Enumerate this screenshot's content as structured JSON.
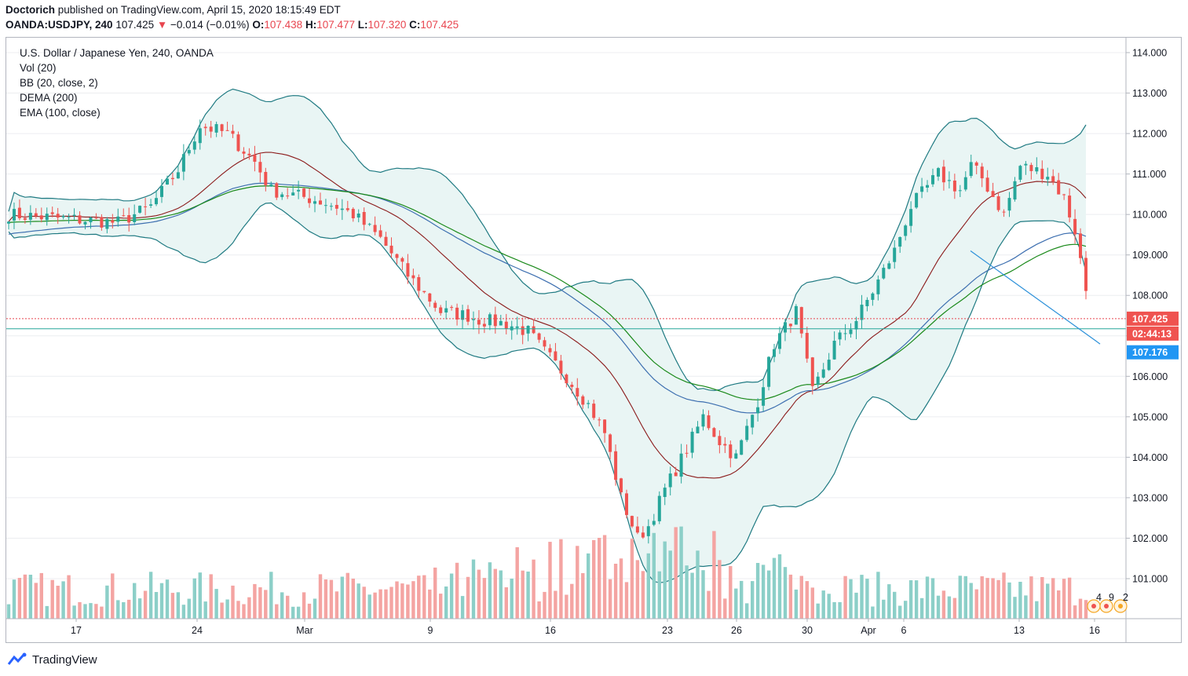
{
  "publish": {
    "author": "Doctorich",
    "text": "published on TradingView.com, April 15, 2020 18:15:49 EDT"
  },
  "ohlc": {
    "symbol": "OANDA:USDJPY, 240",
    "price": "107.425",
    "arrow": "▼",
    "change": "−0.014 (−0.01%)",
    "o_label": "O:",
    "o": "107.438",
    "h_label": "H:",
    "h": "107.477",
    "l_label": "L:",
    "l": "107.320",
    "c_label": "C:",
    "c": "107.425"
  },
  "legend": [
    "U.S. Dollar / Japanese Yen, 240, OANDA",
    "Vol (20)",
    "BB (20, close, 2)",
    "DEMA (200)",
    "EMA (100, close)"
  ],
  "price_tag": "107.425",
  "countdown_tag": "02:44:13",
  "support_tag": "107.176",
  "marker_labels": [
    "4",
    "9",
    "2"
  ],
  "brand": "TradingView",
  "colors": {
    "up": "#26a69a",
    "down": "#ef5350",
    "vol_up": "#8ccfc8",
    "vol_down": "#f4a4a2",
    "bb": "#1f7a82",
    "bb_fill": "#e9f5f4",
    "bb_basis": "#8b1a1a",
    "dema": "#1b8a1b",
    "ema": "#3d6fb0",
    "trend": "#2b90d9",
    "grid": "#ecedf0"
  },
  "chart_data": {
    "type": "candlestick",
    "title": "U.S. Dollar / Japanese Yen, 240, OANDA",
    "ylim": [
      100.25,
      114.2
    ],
    "y_ticks": [
      "114.000",
      "113.000",
      "112.000",
      "111.000",
      "110.000",
      "109.000",
      "108.000",
      "107.000",
      "106.000",
      "105.000",
      "104.000",
      "103.000",
      "102.000",
      "101.000"
    ],
    "x_ticks": [
      "17",
      "24",
      "Mar",
      "9",
      "16",
      "23",
      "26",
      "30",
      "Apr",
      "6",
      "13",
      "16"
    ],
    "last_price": 107.425,
    "support_level": 107.176,
    "candle_count": 198,
    "price_path": [
      [
        0,
        110.0
      ],
      [
        20,
        109.8
      ],
      [
        26,
        110.2
      ],
      [
        31,
        111.1
      ],
      [
        35,
        112.2
      ],
      [
        40,
        112.0
      ],
      [
        45,
        111.3
      ],
      [
        48,
        110.6
      ],
      [
        55,
        110.4
      ],
      [
        60,
        110.2
      ],
      [
        63,
        110.0
      ],
      [
        68,
        109.4
      ],
      [
        73,
        108.5
      ],
      [
        79,
        107.6
      ],
      [
        84,
        107.5
      ],
      [
        86,
        107.4
      ],
      [
        91,
        107.3
      ],
      [
        95,
        107.1
      ],
      [
        98,
        106.6
      ],
      [
        102,
        106.0
      ],
      [
        106,
        105.3
      ],
      [
        109,
        104.6
      ],
      [
        112,
        103.0
      ],
      [
        115,
        102.0
      ],
      [
        117,
        102.3
      ],
      [
        120,
        103.2
      ],
      [
        124,
        104.2
      ],
      [
        127,
        105.0
      ],
      [
        130,
        104.4
      ],
      [
        133,
        104.0
      ],
      [
        137,
        105.4
      ],
      [
        140,
        106.8
      ],
      [
        144,
        107.6
      ],
      [
        147,
        105.6
      ],
      [
        151,
        106.8
      ],
      [
        155,
        107.4
      ],
      [
        158,
        108.1
      ],
      [
        162,
        109.1
      ],
      [
        165,
        110.2
      ],
      [
        170,
        111.0
      ],
      [
        174,
        110.6
      ],
      [
        176,
        111.2
      ],
      [
        178,
        110.9
      ],
      [
        182,
        110.0
      ],
      [
        185,
        111.2
      ],
      [
        190,
        111.0
      ],
      [
        193,
        110.4
      ],
      [
        195,
        109.6
      ],
      [
        198,
        107.4
      ]
    ],
    "series": [
      {
        "name": "BB (20, close, 2) upper / lower / basis",
        "color": "#1f7a82"
      },
      {
        "name": "DEMA (200)",
        "color": "#1b8a1b"
      },
      {
        "name": "EMA (100, close)",
        "color": "#3d6fb0"
      },
      {
        "name": "Vol (20)",
        "color": "#8ccfc8"
      }
    ]
  }
}
